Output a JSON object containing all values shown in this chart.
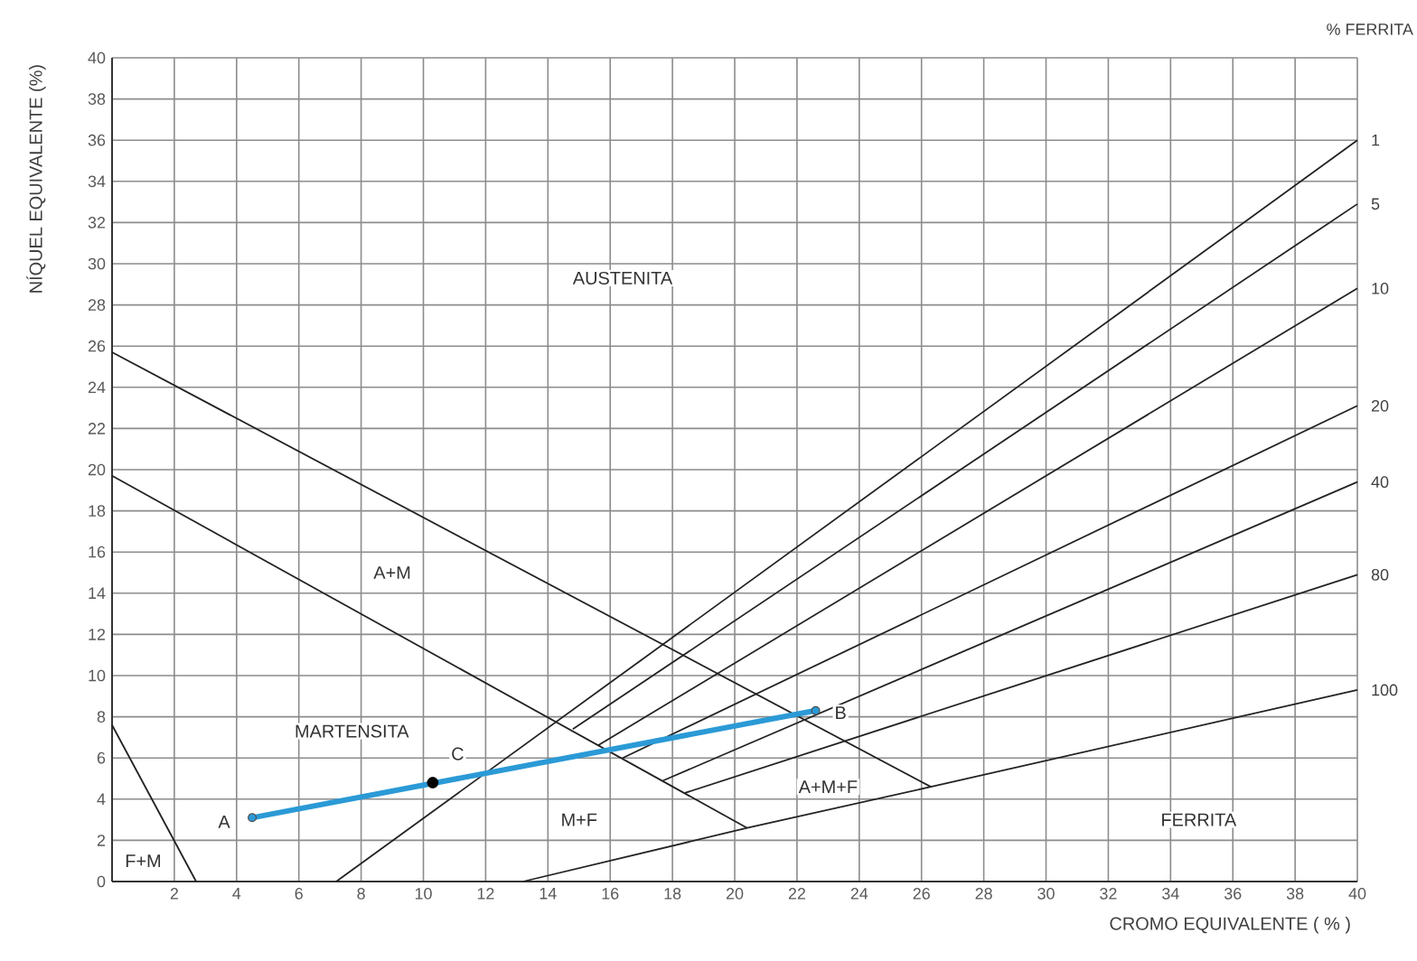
{
  "chart_data": {
    "type": "line",
    "xlabel": "CROMO EQUIVALENTE  ( % )",
    "ylabel": "NÍQUEL EQUIVALENTE (%)",
    "xlim": [
      0,
      40
    ],
    "ylim": [
      0,
      40
    ],
    "xticks": [
      2,
      4,
      6,
      8,
      10,
      12,
      14,
      16,
      18,
      20,
      22,
      24,
      26,
      28,
      30,
      32,
      34,
      36,
      38,
      40
    ],
    "yticks": [
      0,
      2,
      4,
      6,
      8,
      10,
      12,
      14,
      16,
      18,
      20,
      22,
      24,
      26,
      28,
      30,
      32,
      34,
      36,
      38,
      40
    ],
    "grid": true,
    "series": [
      {
        "x": [
          0,
          26.3
        ],
        "values": [
          25.7,
          4.6
        ],
        "color": "#222222"
      },
      {
        "x": [
          0,
          20.4
        ],
        "values": [
          19.7,
          2.6
        ],
        "color": "#222222"
      },
      {
        "x": [
          0,
          2.7
        ],
        "values": [
          7.6,
          0
        ],
        "color": "#222222"
      },
      {
        "name": "1",
        "x": [
          7.2,
          40
        ],
        "values": [
          0,
          36
        ],
        "color": "#222222"
      },
      {
        "name": "5",
        "x": [
          14.8,
          40
        ],
        "values": [
          7.4,
          32.9
        ],
        "color": "#222222"
      },
      {
        "name": "10",
        "x": [
          15.6,
          40
        ],
        "values": [
          6.6,
          28.8
        ],
        "color": "#222222"
      },
      {
        "name": "20",
        "x": [
          16.4,
          40
        ],
        "values": [
          6.0,
          23.1
        ],
        "color": "#222222"
      },
      {
        "name": "40",
        "x": [
          17.7,
          40
        ],
        "values": [
          4.9,
          19.4
        ],
        "color": "#222222"
      },
      {
        "name": "80",
        "x": [
          18.4,
          40
        ],
        "values": [
          4.3,
          14.9
        ],
        "color": "#222222"
      },
      {
        "name": "100",
        "x": [
          13.2,
          20.4,
          26.3,
          40
        ],
        "values": [
          0,
          2.6,
          4.6,
          9.3
        ],
        "color": "#222222"
      },
      {
        "x": [
          4.5,
          22.6
        ],
        "values": [
          3.1,
          8.3
        ],
        "color": "#2b9ad6",
        "marker": "circle"
      },
      {
        "type": "scatter",
        "x": [
          10.3
        ],
        "values": [
          4.8
        ],
        "color": "#000000"
      }
    ],
    "annotations": [
      "% FERRITA",
      "AUSTENITA",
      "A+M",
      "MARTENSITA",
      "M+F",
      "A+M+F",
      "FERRITA",
      "F+M",
      "A",
      "B",
      "C"
    ]
  }
}
